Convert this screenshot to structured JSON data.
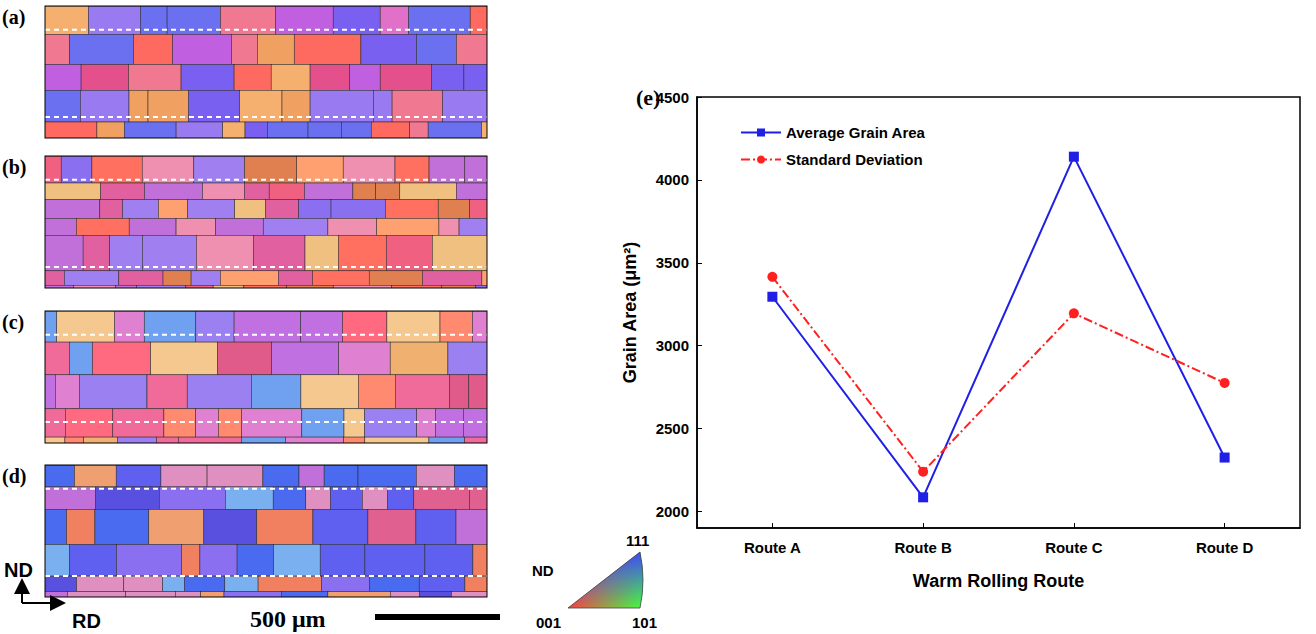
{
  "panels": [
    {
      "label": "(a)"
    },
    {
      "label": "(b)"
    },
    {
      "label": "(c)"
    },
    {
      "label": "(d)"
    }
  ],
  "sample_axes": {
    "vertical": "ND",
    "horizontal": "RD"
  },
  "scale_bar": "500 μm",
  "ipf_legend": {
    "title": "ND",
    "top": "111",
    "bottom_left": "001",
    "bottom_right": "101"
  },
  "chart_data": {
    "type": "line",
    "panel_label": "(e)",
    "x_label": "Warm Rolling Route",
    "y_label": "Grain Area (μm²)",
    "categories": [
      "Route A",
      "Route B",
      "Route C",
      "Route D"
    ],
    "series": [
      {
        "name": "Average Grain Area",
        "color": "#1f1fe6",
        "marker": "square",
        "line_style": "solid",
        "values": [
          3295,
          2085,
          4140,
          2325
        ]
      },
      {
        "name": "Standard Deviation",
        "color": "#ff2020",
        "marker": "circle",
        "line_style": "dashdot",
        "values": [
          3415,
          2240,
          3195,
          2775
        ]
      }
    ],
    "ylim": [
      1900,
      4500
    ],
    "yticks": [
      2000,
      2500,
      3000,
      3500,
      4000,
      4500
    ],
    "legend": "upper left",
    "grid": false
  }
}
